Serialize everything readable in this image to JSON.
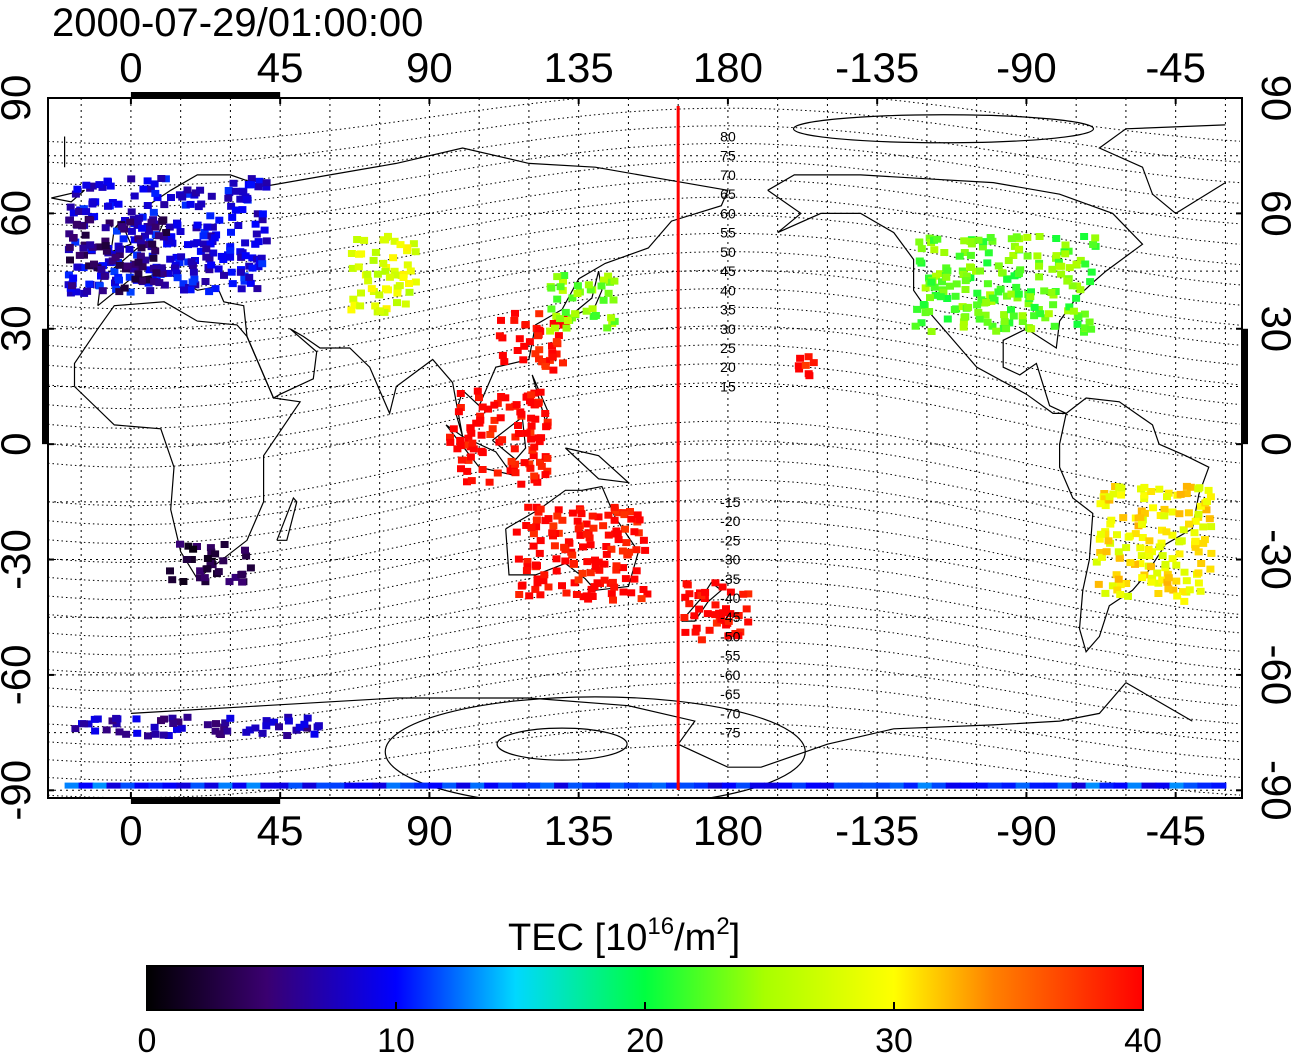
{
  "title": "2000-07-29/01:00:00",
  "map": {
    "lon_ticks": [
      0,
      45,
      90,
      135,
      180,
      -135,
      -90,
      -45
    ],
    "lat_ticks": [
      90,
      60,
      30,
      0,
      -30,
      -60,
      -90
    ],
    "lon_range": [
      -25,
      335
    ],
    "lat_range": [
      -92,
      90
    ],
    "meridian_marker_lon": 165,
    "marker_color": "#ff0000",
    "contour_labels": [
      "80",
      "75",
      "70",
      "65",
      "60",
      "55",
      "50",
      "45",
      "40",
      "35",
      "30",
      "25",
      "20",
      "15",
      "-15",
      "-20",
      "-25",
      "-30",
      "-35",
      "-40",
      "-45",
      "-50",
      "-55",
      "-60",
      "-65",
      "-70",
      "-75"
    ]
  },
  "colorbar": {
    "label_main": "TEC  [10",
    "label_exp1": "16",
    "label_mid": "/m",
    "label_exp2": "2",
    "label_end": "]",
    "ticks": [
      "0",
      "10",
      "20",
      "30",
      "40"
    ],
    "range": [
      0,
      40
    ],
    "colors": [
      "#000000",
      "#4b0082",
      "#0000ff",
      "#00ffff",
      "#00ff00",
      "#ffff00",
      "#ff8000",
      "#ff0000"
    ]
  },
  "chart_data": {
    "type": "heatmap",
    "title": "2000-07-29/01:00:00",
    "value_label": "TEC [10^16/m^2]",
    "value_range": [
      0,
      40
    ],
    "regions": [
      {
        "lon": [
          -20,
          40
        ],
        "lat": [
          40,
          70
        ],
        "tec": 9
      },
      {
        "lon": [
          -20,
          10
        ],
        "lat": [
          40,
          60
        ],
        "tec": 5
      },
      {
        "lon": [
          65,
          85
        ],
        "lat": [
          35,
          55
        ],
        "tec": 28
      },
      {
        "lon": [
          110,
          130
        ],
        "lat": [
          20,
          35
        ],
        "tec": 40
      },
      {
        "lon": [
          125,
          145
        ],
        "lat": [
          30,
          45
        ],
        "tec": 24
      },
      {
        "lon": [
          95,
          125
        ],
        "lat": [
          -10,
          15
        ],
        "tec": 40
      },
      {
        "lon": [
          115,
          155
        ],
        "lat": [
          -40,
          -15
        ],
        "tec": 40
      },
      {
        "lon": [
          165,
          185
        ],
        "lat": [
          -50,
          -35
        ],
        "tec": 40
      },
      {
        "lon": [
          200,
          205
        ],
        "lat": [
          18,
          24
        ],
        "tec": 39
      },
      {
        "lon": [
          235,
          290
        ],
        "lat": [
          30,
          55
        ],
        "tec": 23
      },
      {
        "lon": [
          290,
          325
        ],
        "lat": [
          -40,
          -10
        ],
        "tec": 30
      },
      {
        "lon": [
          10,
          35
        ],
        "lat": [
          -35,
          -25
        ],
        "tec": 3
      },
      {
        "lon": [
          -20,
          60
        ],
        "lat": [
          -75,
          -70
        ],
        "tec": 7
      },
      {
        "lon": [
          -20,
          330
        ],
        "lat": [
          -90,
          -88
        ],
        "tec": 11
      }
    ]
  }
}
